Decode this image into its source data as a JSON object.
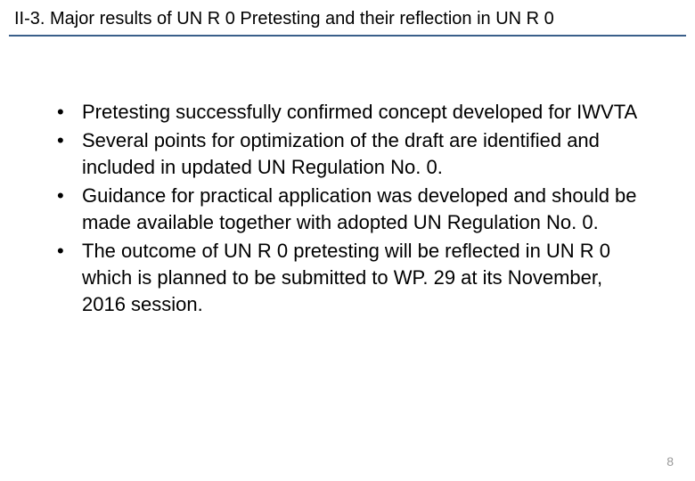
{
  "header": {
    "title": "II-3. Major results of UN R 0 Pretesting and their reflection in UN R 0"
  },
  "divider": {
    "color": "#3a5f8a",
    "thickness": 2
  },
  "content": {
    "bullets": [
      "Pretesting successfully confirmed concept developed for IWVTA",
      "Several points for optimization of the draft are identified and included in updated UN Regulation No. 0.",
      "Guidance for practical application was developed and should be made available together with adopted UN Regulation No. 0.",
      "The outcome of UN R 0 pretesting will be reflected in UN R 0 which is planned to be submitted to WP. 29 at its November, 2016 session."
    ]
  },
  "typography": {
    "title_fontsize": 20,
    "body_fontsize": 22,
    "body_lineheight": 30,
    "pagenum_fontsize": 14,
    "text_color": "#000000",
    "pagenum_color": "#9a9a9a"
  },
  "footer": {
    "page_number": "8"
  }
}
